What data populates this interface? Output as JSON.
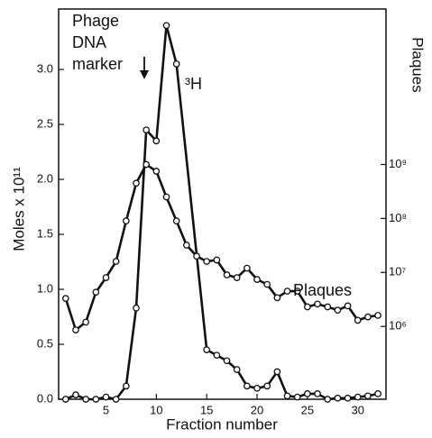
{
  "chart_data": {
    "type": "line",
    "xlabel": "Fraction number",
    "ylabel": "Moles x 10¹¹",
    "y2label": "Plaques",
    "xlim": [
      0.3,
      32.8
    ],
    "xticks": [
      5,
      10,
      15,
      20,
      25,
      30
    ],
    "ylim": [
      0,
      3.55
    ],
    "yticks": [
      {
        "value": 0,
        "label": "0.0"
      },
      0.5,
      {
        "value": 1,
        "label": "1.0"
      },
      1.5,
      {
        "value": 2,
        "label": "2.0"
      },
      2.5,
      {
        "value": 3,
        "label": "3.0"
      }
    ],
    "y2lim": [
      44700,
      760000000000
    ],
    "y2log": true,
    "y2ticks": [
      {
        "value": 1000000,
        "label": "10⁶"
      },
      {
        "value": 10000000,
        "label": "10⁷"
      },
      {
        "value": 100000000,
        "label": "10⁸"
      },
      {
        "value": 1000000000,
        "label": "10⁹"
      }
    ],
    "annotations": [
      "Phage",
      "DNA",
      "marker",
      "³H",
      "Plaques"
    ],
    "series": [
      {
        "color": "#111111",
        "axis": "y",
        "x": [
          1,
          2,
          3,
          4,
          5,
          6,
          7,
          8,
          9,
          10,
          11,
          12,
          15,
          16,
          17,
          18,
          19,
          20,
          21,
          22,
          23,
          24,
          25,
          26,
          27,
          28,
          29,
          30,
          31,
          32
        ],
        "values": [
          0.0,
          0.04,
          0.0,
          0.0,
          0.02,
          0.0,
          0.12,
          0.83,
          2.45,
          2.35,
          3.4,
          3.05,
          0.45,
          0.4,
          0.35,
          0.27,
          0.12,
          0.1,
          0.12,
          0.25,
          0.03,
          0.02,
          0.05,
          0.05,
          0.0,
          0.01,
          0.01,
          0.02,
          0.03,
          0.05
        ]
      },
      {
        "color": "#111111",
        "axis": "y2",
        "x": [
          1,
          2,
          3,
          4,
          5,
          6,
          7,
          8,
          9,
          10,
          11,
          12,
          13,
          14,
          15,
          16,
          17,
          18,
          19,
          20,
          21,
          22,
          23,
          24,
          25,
          26,
          27,
          28,
          29,
          30,
          31,
          32
        ],
        "values": [
          3300000,
          860000,
          1200000,
          4300000,
          8000000,
          16000000,
          90000000,
          450000000,
          1000000000,
          750000000,
          250000000,
          90000000,
          32000000,
          20000000,
          16000000,
          17000000,
          9000000,
          8000000,
          12000000,
          7400000,
          6000000,
          3400000,
          4500000,
          4500000,
          2300000,
          2600000,
          2300000,
          2000000,
          2400000,
          1300000,
          1500000,
          1600000
        ]
      }
    ]
  }
}
